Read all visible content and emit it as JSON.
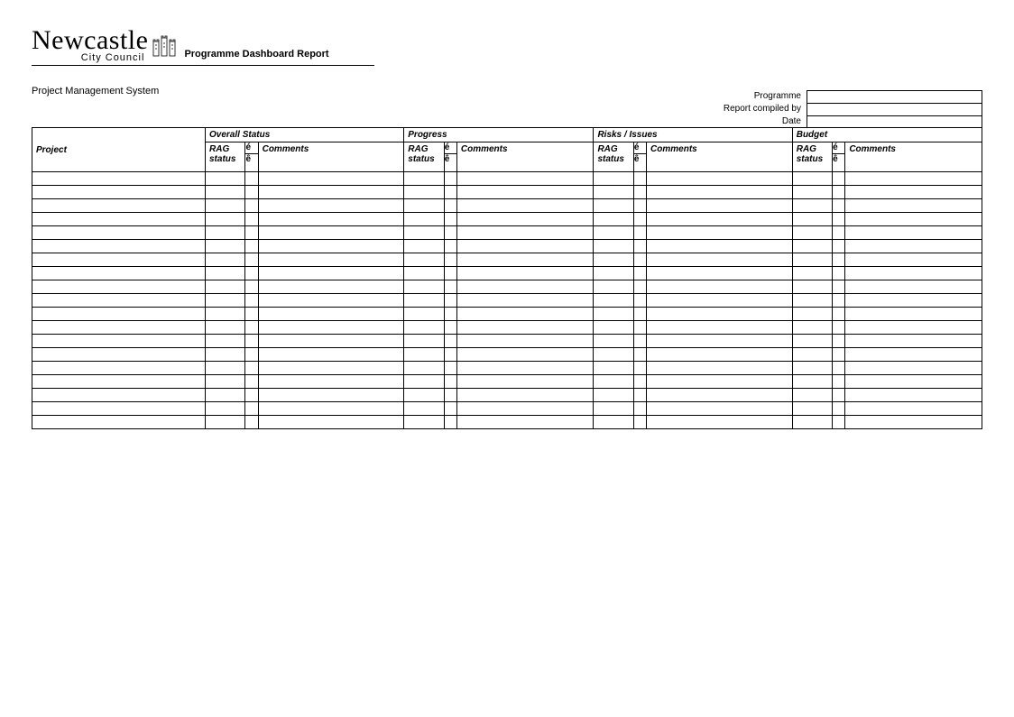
{
  "logo": {
    "main": "Newcastle",
    "sub": "City Council"
  },
  "report_title": "Programme Dashboard Report",
  "subtitle": "Project Management System",
  "meta": {
    "programme_label": "Programme",
    "compiled_by_label": "Report compiled by",
    "date_label": "Date",
    "programme_value": "",
    "compiled_by_value": "",
    "date_value": ""
  },
  "table": {
    "project_header": "Project",
    "groups": [
      "Overall Status",
      "Progress",
      "Risks / Issues",
      "Budget"
    ],
    "sub_rag": "RAG status",
    "sub_arrow_up": "é",
    "sub_arrow_down": "ê",
    "sub_comments": "Comments",
    "row_count": 19,
    "colors": {
      "border": "#000000",
      "background": "#ffffff",
      "text": "#000000"
    },
    "font_sizes": {
      "group_header": 10,
      "sub_header": 10,
      "body": 10
    }
  }
}
